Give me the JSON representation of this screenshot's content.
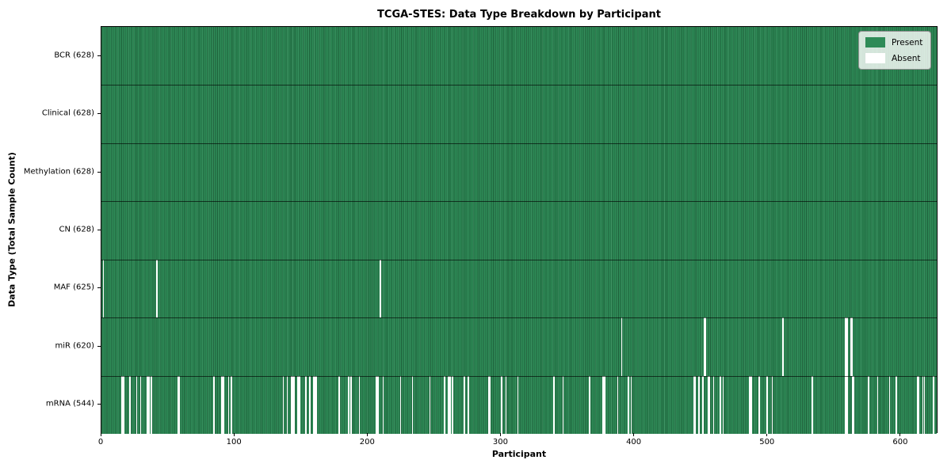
{
  "chart_data": {
    "type": "heatmap",
    "subtype": "presence-absence-matrix",
    "title": "TCGA-STES: Data Type Breakdown by Participant",
    "xlabel": "Participant",
    "ylabel": "Data Type (Total Sample Count)",
    "n_participants": 628,
    "xlim": [
      0,
      628
    ],
    "x_ticks": [
      0,
      100,
      200,
      300,
      400,
      500,
      600
    ],
    "grid": false,
    "colors": {
      "present": "#2e8b57",
      "present_edge": "#14462a",
      "absent": "#ffffff",
      "separator": "#000000"
    },
    "legend": {
      "position": "upper-right",
      "entries": [
        {
          "label": "Present",
          "color": "#2e8b57"
        },
        {
          "label": "Absent",
          "color": "#ffffff"
        }
      ]
    },
    "rows": [
      {
        "label": "BCR",
        "count": 628,
        "display": "BCR (628)",
        "absent_participants": []
      },
      {
        "label": "Clinical",
        "count": 628,
        "display": "Clinical (628)",
        "absent_participants": []
      },
      {
        "label": "Methylation",
        "count": 628,
        "display": "Methylation (628)",
        "absent_participants": []
      },
      {
        "label": "CN",
        "count": 628,
        "display": "CN (628)",
        "absent_participants": []
      },
      {
        "label": "MAF",
        "count": 625,
        "display": "MAF (625)",
        "absent_participants": [
          1,
          41,
          209
        ]
      },
      {
        "label": "miR",
        "count": 620,
        "display": "miR (620)",
        "absent_participants": [
          390,
          452,
          453,
          511,
          558,
          559,
          562,
          563
        ]
      },
      {
        "label": "mRNA",
        "count": 544,
        "display": "mRNA (544)",
        "absent_participants": [
          15,
          16,
          21,
          26,
          29,
          34,
          35,
          37,
          57,
          58,
          84,
          90,
          91,
          95,
          97,
          136,
          139,
          142,
          143,
          144,
          147,
          148,
          153,
          156,
          159,
          160,
          161,
          178,
          185,
          187,
          193,
          206,
          207,
          211,
          224,
          233,
          246,
          257,
          260,
          261,
          263,
          272,
          275,
          290,
          291,
          300,
          303,
          312,
          339,
          346,
          366,
          376,
          377,
          387,
          395,
          397,
          444,
          445,
          448,
          451,
          455,
          456,
          459,
          464,
          466,
          486,
          487,
          493,
          499,
          503,
          533,
          558,
          559,
          563,
          564,
          575,
          582,
          591,
          596,
          612,
          613,
          616,
          617,
          624
        ]
      }
    ]
  }
}
